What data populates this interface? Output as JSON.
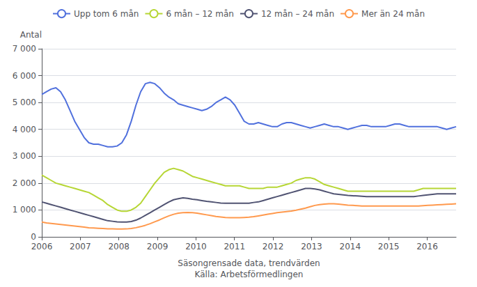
{
  "chart_data": {
    "type": "line",
    "title": "",
    "xlabel": "Säsongrensade data, trendvärden\nKälla: Arbetsförmedlingen",
    "ylabel": "Antal",
    "x": [
      2006,
      2006.122159,
      2006.244318,
      2006.366477,
      2006.488636,
      2006.610795,
      2006.732955,
      2006.855114,
      2006.977273,
      2007.099432,
      2007.221591,
      2007.34375,
      2007.465909,
      2007.588068,
      2007.710227,
      2007.832386,
      2007.954545,
      2008.076705,
      2008.198864,
      2008.321023,
      2008.443182,
      2008.565341,
      2008.6875,
      2008.809659,
      2008.931818,
      2009.053977,
      2009.176136,
      2009.298295,
      2009.420455,
      2009.542614,
      2009.664773,
      2009.786932,
      2009.909091,
      2010.03125,
      2010.153409,
      2010.275568,
      2010.397727,
      2010.519886,
      2010.642045,
      2010.764205,
      2010.886364,
      2011.008523,
      2011.130682,
      2011.252841,
      2011.375,
      2011.497159,
      2011.619318,
      2011.741477,
      2011.863636,
      2011.985795,
      2012.107955,
      2012.230114,
      2012.352273,
      2012.474432,
      2012.596591,
      2012.71875,
      2012.840909,
      2012.963068,
      2013.085227,
      2013.207386,
      2013.329545,
      2013.451705,
      2013.573864,
      2013.696023,
      2013.818182,
      2013.940341,
      2014.0625,
      2014.184659,
      2014.306818,
      2014.428977,
      2014.551136,
      2014.673295,
      2014.795455,
      2014.917614,
      2015.039773,
      2015.161932,
      2015.284091,
      2015.40625,
      2015.528409,
      2015.650568,
      2015.772727,
      2015.894886,
      2016.017045,
      2016.139205,
      2016.261364,
      2016.383523,
      2016.505682,
      2016.627841,
      2016.75
    ],
    "series": [
      {
        "name": "Upp tom 6 mån",
        "values": [
          5300,
          5400,
          5500,
          5550,
          5400,
          5100,
          4700,
          4300,
          4000,
          3700,
          3500,
          3450,
          3450,
          3400,
          3350,
          3350,
          3380,
          3500,
          3800,
          4300,
          4900,
          5400,
          5700,
          5750,
          5700,
          5550,
          5350,
          5200,
          5100,
          4950,
          4900,
          4850,
          4800,
          4750,
          4700,
          4750,
          4850,
          5000,
          5100,
          5200,
          5100,
          4900,
          4600,
          4300,
          4200,
          4200,
          4250,
          4200,
          4150,
          4100,
          4100,
          4200,
          4250,
          4250,
          4200,
          4150,
          4100,
          4050,
          4100,
          4150,
          4200,
          4150,
          4100,
          4100,
          4050,
          4000,
          4050,
          4100,
          4150,
          4150,
          4100,
          4100,
          4100,
          4100,
          4150,
          4200,
          4200,
          4150,
          4100,
          4100,
          4100,
          4100,
          4100,
          4100,
          4100,
          4050,
          4000,
          4050,
          4100
        ]
      },
      {
        "name": "6 mån – 12 mån",
        "values": [
          2300,
          2200,
          2100,
          2000,
          1950,
          1900,
          1850,
          1800,
          1750,
          1700,
          1650,
          1550,
          1450,
          1350,
          1200,
          1100,
          1000,
          950,
          950,
          1000,
          1100,
          1250,
          1500,
          1750,
          2000,
          2200,
          2400,
          2500,
          2550,
          2500,
          2450,
          2350,
          2250,
          2200,
          2150,
          2100,
          2050,
          2000,
          1950,
          1900,
          1900,
          1900,
          1900,
          1850,
          1800,
          1800,
          1800,
          1800,
          1850,
          1850,
          1850,
          1900,
          1950,
          2000,
          2100,
          2150,
          2200,
          2200,
          2150,
          2050,
          1950,
          1900,
          1850,
          1800,
          1750,
          1700,
          1700,
          1700,
          1700,
          1700,
          1700,
          1700,
          1700,
          1700,
          1700,
          1700,
          1700,
          1700,
          1700,
          1700,
          1750,
          1800,
          1800,
          1800,
          1800,
          1800,
          1800,
          1800,
          1800
        ]
      },
      {
        "name": "12 mån – 24 mån",
        "values": [
          1300,
          1250,
          1200,
          1150,
          1100,
          1050,
          1000,
          950,
          900,
          850,
          800,
          750,
          700,
          650,
          600,
          580,
          560,
          550,
          550,
          570,
          620,
          700,
          800,
          900,
          1000,
          1100,
          1200,
          1300,
          1380,
          1420,
          1450,
          1430,
          1400,
          1380,
          1350,
          1320,
          1300,
          1280,
          1260,
          1250,
          1250,
          1250,
          1250,
          1250,
          1250,
          1280,
          1300,
          1350,
          1400,
          1450,
          1500,
          1550,
          1600,
          1650,
          1700,
          1750,
          1800,
          1800,
          1780,
          1750,
          1700,
          1650,
          1600,
          1580,
          1560,
          1540,
          1530,
          1520,
          1510,
          1500,
          1500,
          1500,
          1500,
          1500,
          1500,
          1500,
          1500,
          1500,
          1500,
          1500,
          1520,
          1540,
          1560,
          1580,
          1600,
          1600,
          1600,
          1600,
          1600
        ]
      },
      {
        "name": "Mer än 24 mån",
        "values": [
          550,
          520,
          500,
          480,
          460,
          440,
          420,
          400,
          380,
          360,
          340,
          330,
          320,
          310,
          300,
          295,
          290,
          290,
          295,
          310,
          340,
          380,
          430,
          490,
          560,
          630,
          710,
          780,
          840,
          880,
          900,
          910,
          900,
          880,
          850,
          820,
          790,
          760,
          740,
          720,
          710,
          710,
          710,
          720,
          730,
          750,
          780,
          810,
          840,
          870,
          900,
          920,
          940,
          960,
          990,
          1030,
          1070,
          1120,
          1170,
          1200,
          1220,
          1230,
          1230,
          1220,
          1200,
          1180,
          1170,
          1160,
          1150,
          1150,
          1150,
          1150,
          1150,
          1150,
          1150,
          1150,
          1150,
          1150,
          1150,
          1150,
          1150,
          1160,
          1170,
          1180,
          1190,
          1200,
          1210,
          1220,
          1230
        ]
      }
    ],
    "xlim": [
      2006,
      2016.75
    ],
    "xticks": [
      2006,
      2007,
      2008,
      2009,
      2010,
      2011,
      2012,
      2013,
      2014,
      2015,
      2016
    ],
    "ylim": [
      0,
      7000
    ],
    "yticks": [
      0,
      {
        "value": 1000,
        "label": "1 000"
      },
      {
        "value": 2000,
        "label": "2 000"
      },
      {
        "value": 3000,
        "label": "3 000"
      },
      {
        "value": 4000,
        "label": "4 000"
      },
      {
        "value": 5000,
        "label": "5 000"
      },
      {
        "value": 6000,
        "label": "6 000"
      },
      {
        "value": 7000,
        "label": "7 000"
      }
    ],
    "grid": true,
    "legend": "top"
  }
}
